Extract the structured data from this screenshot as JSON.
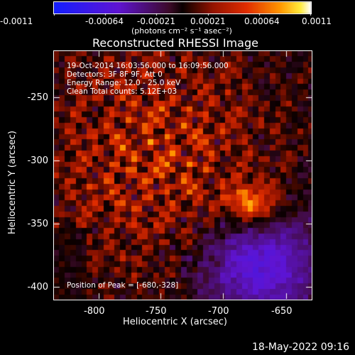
{
  "colorbar": {
    "tick_labels": [
      "-0.0011",
      "-0.00064",
      "-0.00021",
      "0.00021",
      "0.00064",
      "0.0011"
    ],
    "units": "(photons cm⁻² s⁻¹ asec⁻²)"
  },
  "plot": {
    "title": "Reconstructed RHESSI Image",
    "info_lines": [
      "19-Oct-2014 16:03:56.000 to 16:09:56.000",
      "Detectors: 3F 8F 9F, Att 0",
      "Energy Range: 12.0 - 25.0 keV",
      "Clean    Total counts: 5.12E+03"
    ],
    "peak_text": "Position of Peak = [-680,-328]",
    "xlabel": "Heliocentric X (arcsec)",
    "ylabel": "Heliocentric Y (arcsec)",
    "x_ticks": [
      "-800",
      "-750",
      "-700",
      "-650"
    ],
    "y_ticks": [
      "-250",
      "-300",
      "-350",
      "-400"
    ]
  },
  "footer": {
    "timestamp": "18-May-2022 09:16"
  },
  "colors": {
    "negative": "#4b1bd6",
    "positive": "#ffd200",
    "background": "#000000"
  }
}
